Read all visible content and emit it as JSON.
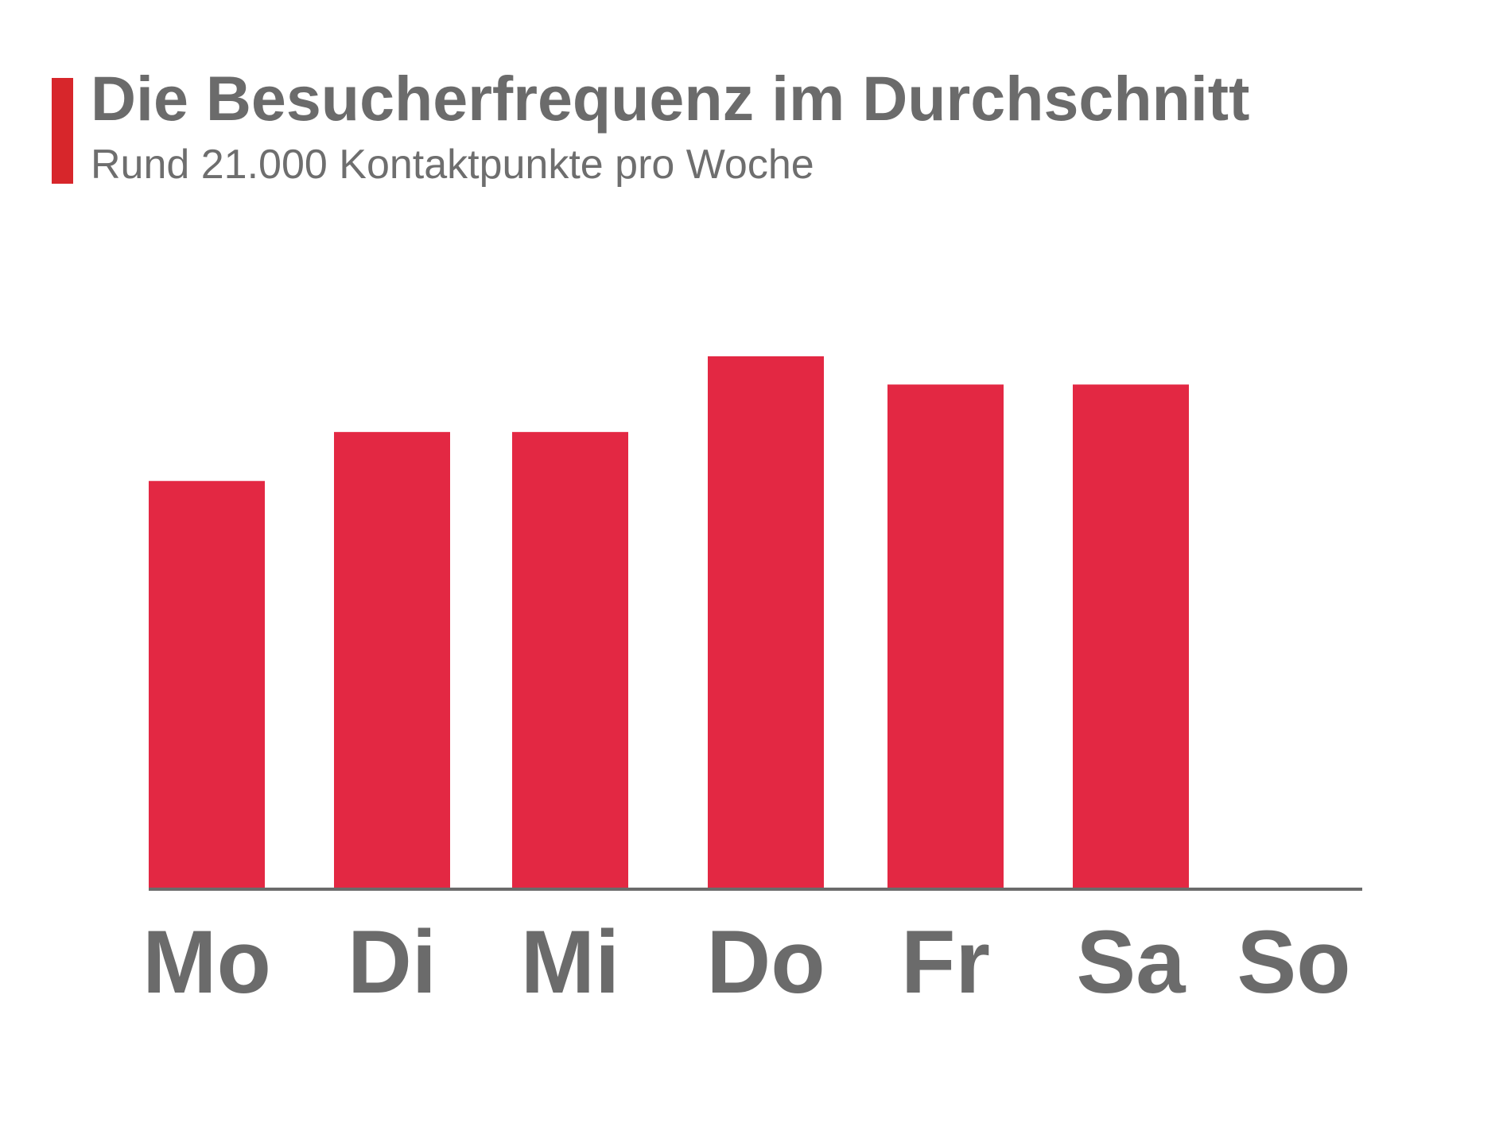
{
  "header": {
    "title": "Die Besucherfrequenz im Durchschnitt",
    "subtitle": "Rund 21.000 Kontaktpunkte pro Woche"
  },
  "colors": {
    "accent": "#d7262b",
    "bar": "#e32843",
    "text": "#6b6b6b",
    "axis": "#6b6b6b"
  },
  "chart_data": {
    "type": "bar",
    "title": "Die Besucherfrequenz im Durchschnitt",
    "subtitle": "Rund 21.000 Kontaktpunkte pro Woche",
    "xlabel": "",
    "ylabel": "",
    "categories": [
      "Mo",
      "Di",
      "Mi",
      "Do",
      "Fr",
      "Sa",
      "So"
    ],
    "values": [
      2740,
      3070,
      3070,
      3580,
      3390,
      3390,
      0
    ],
    "ylim": [
      0,
      3580
    ],
    "grid": false,
    "legend": "none"
  }
}
